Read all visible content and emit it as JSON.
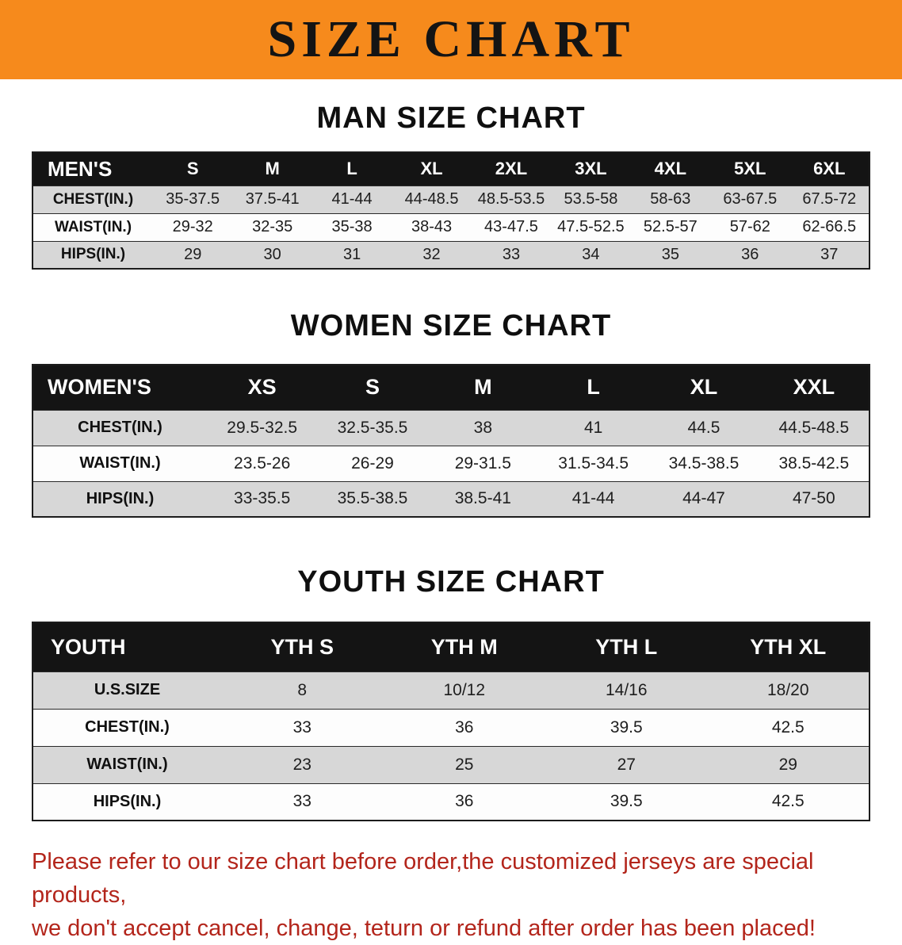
{
  "banner": {
    "title": "SIZE CHART",
    "bg_color": "#f68a1c",
    "text_color": "#141414"
  },
  "sections": [
    {
      "id": "mens",
      "heading": "MAN SIZE CHART",
      "table": {
        "header": [
          "MEN'S",
          "S",
          "M",
          "L",
          "XL",
          "2XL",
          "3XL",
          "4XL",
          "5XL",
          "6XL"
        ],
        "rows": [
          {
            "label": "CHEST(IN.)",
            "values": [
              "35-37.5",
              "37.5-41",
              "41-44",
              "44-48.5",
              "48.5-53.5",
              "53.5-58",
              "58-63",
              "63-67.5",
              "67.5-72"
            ]
          },
          {
            "label": "WAIST(IN.)",
            "values": [
              "29-32",
              "32-35",
              "35-38",
              "38-43",
              "43-47.5",
              "47.5-52.5",
              "52.5-57",
              "57-62",
              "62-66.5"
            ]
          },
          {
            "label": "HIPS(IN.)",
            "values": [
              "29",
              "30",
              "31",
              "32",
              "33",
              "34",
              "35",
              "36",
              "37"
            ]
          }
        ]
      }
    },
    {
      "id": "womens",
      "heading": "WOMEN SIZE CHART",
      "table": {
        "header": [
          "WOMEN'S",
          "XS",
          "S",
          "M",
          "L",
          "XL",
          "XXL"
        ],
        "rows": [
          {
            "label": "CHEST(IN.)",
            "values": [
              "29.5-32.5",
              "32.5-35.5",
              "38",
              "41",
              "44.5",
              "44.5-48.5"
            ]
          },
          {
            "label": "WAIST(IN.)",
            "values": [
              "23.5-26",
              "26-29",
              "29-31.5",
              "31.5-34.5",
              "34.5-38.5",
              "38.5-42.5"
            ]
          },
          {
            "label": "HIPS(IN.)",
            "values": [
              "33-35.5",
              "35.5-38.5",
              "38.5-41",
              "41-44",
              "44-47",
              "47-50"
            ]
          }
        ]
      }
    },
    {
      "id": "youth",
      "heading": "YOUTH SIZE CHART",
      "table": {
        "header": [
          "YOUTH",
          "YTH S",
          "YTH M",
          "YTH L",
          "YTH XL"
        ],
        "rows": [
          {
            "label": "U.S.SIZE",
            "values": [
              "8",
              "10/12",
              "14/16",
              "18/20"
            ]
          },
          {
            "label": "CHEST(IN.)",
            "values": [
              "33",
              "36",
              "39.5",
              "42.5"
            ]
          },
          {
            "label": "WAIST(IN.)",
            "values": [
              "23",
              "25",
              "27",
              "29"
            ]
          },
          {
            "label": "HIPS(IN.)",
            "values": [
              "33",
              "36",
              "39.5",
              "42.5"
            ]
          }
        ]
      }
    }
  ],
  "footer_note": {
    "line1": "Please refer to our size chart before order,the customized jerseys are special products,",
    "line2": "we don't accept cancel, change, teturn or refund after order has been placed!",
    "color": "#b3251b"
  }
}
